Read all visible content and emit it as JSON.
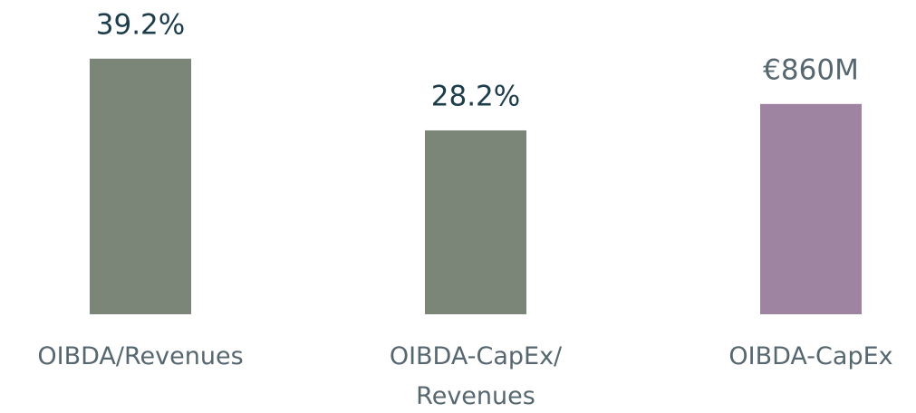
{
  "chart_data": {
    "type": "bar",
    "categories": [
      "OIBDA/Revenues",
      "OIBDA-CapEx/\nRevenues",
      "OIBDA-CapEx"
    ],
    "series": [
      {
        "color": "#7b8679",
        "label_color": "#1d3d4b",
        "values": [
          39.2,
          28.2,
          null
        ],
        "value_labels": [
          "39.2%",
          "28.2%",
          null
        ]
      },
      {
        "color": "#9e84a1",
        "label_color": "#56676f",
        "axis": "y2",
        "values": [
          null,
          null,
          860
        ],
        "value_labels": [
          null,
          null,
          "€860M"
        ]
      }
    ],
    "ylim": [
      0,
      45
    ],
    "y2lim": [
      0,
      1200
    ]
  }
}
